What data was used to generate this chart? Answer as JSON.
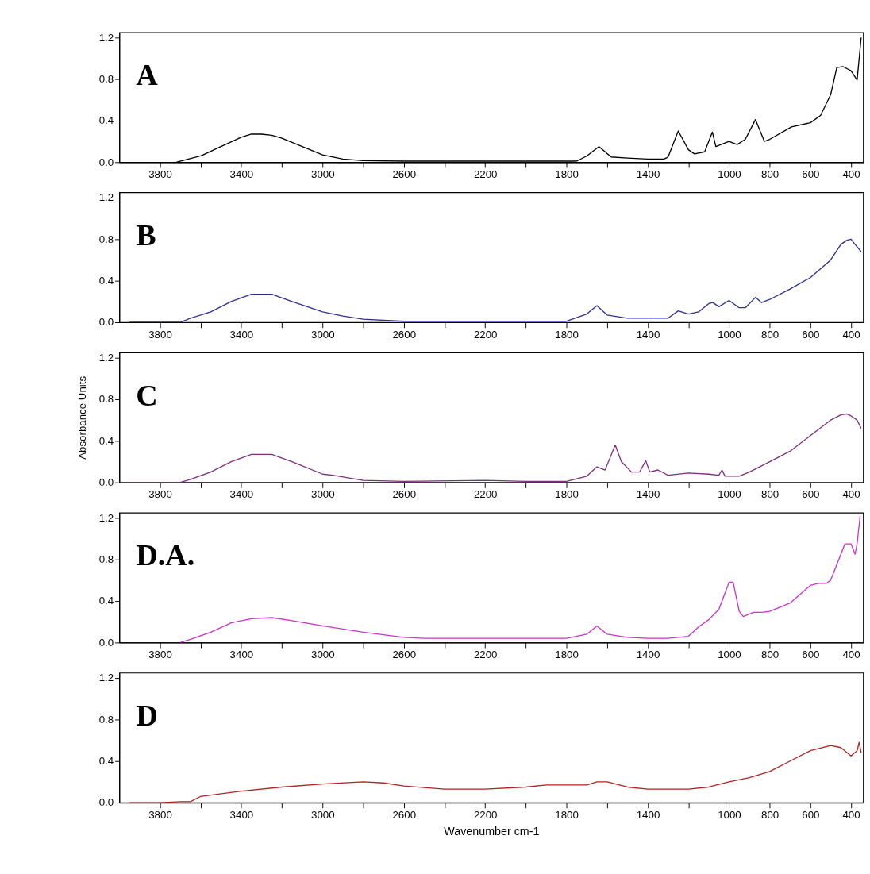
{
  "chart_data": [
    {
      "type": "line",
      "annotations": [
        "A"
      ],
      "xlim": [
        4000,
        340
      ],
      "ylim": [
        0,
        1.25
      ],
      "grid": false,
      "xticks": [
        3800,
        {
          "value": 3600,
          "label": null
        },
        3400,
        {
          "value": 3200,
          "label": null
        },
        3000,
        {
          "value": 2800,
          "label": null
        },
        2600,
        {
          "value": 2400,
          "label": null
        },
        2200,
        {
          "value": 2000,
          "label": null
        },
        1800,
        {
          "value": 1600,
          "label": null
        },
        1400,
        {
          "value": 1200,
          "label": null
        },
        1000,
        800,
        600,
        400
      ],
      "yticks": [
        {
          "value": 0,
          "label": "0.0"
        },
        {
          "value": 0.4,
          "label": "0.4"
        },
        {
          "value": 0.8,
          "label": "0.8"
        },
        {
          "value": 1.2,
          "label": "1.2"
        }
      ],
      "series": [
        {
          "color": "#000000",
          "x": [
            3720,
            3600,
            3500,
            3400,
            3350,
            3300,
            3250,
            3200,
            3100,
            3000,
            2900,
            2800,
            2600,
            2000,
            1750,
            1700,
            1640,
            1580,
            1500,
            1400,
            1320,
            1300,
            1250,
            1200,
            1170,
            1120,
            1082,
            1065,
            1000,
            960,
            920,
            870,
            826,
            800,
            693,
            600,
            550,
            500,
            470,
            440,
            420,
            400,
            370,
            350
          ],
          "values": [
            0.0,
            0.06,
            0.15,
            0.24,
            0.27,
            0.27,
            0.26,
            0.23,
            0.15,
            0.07,
            0.03,
            0.015,
            0.01,
            0.01,
            0.01,
            0.06,
            0.15,
            0.05,
            0.04,
            0.03,
            0.03,
            0.05,
            0.3,
            0.12,
            0.08,
            0.1,
            0.29,
            0.15,
            0.2,
            0.17,
            0.22,
            0.41,
            0.2,
            0.22,
            0.34,
            0.38,
            0.45,
            0.65,
            0.91,
            0.92,
            0.9,
            0.88,
            0.79,
            1.2
          ]
        }
      ]
    },
    {
      "type": "line",
      "annotations": [
        "B"
      ],
      "xlim": [
        4000,
        340
      ],
      "ylim": [
        0,
        1.25
      ],
      "grid": false,
      "xticks": [
        3800,
        {
          "value": 3600,
          "label": null
        },
        3400,
        {
          "value": 3200,
          "label": null
        },
        3000,
        {
          "value": 2800,
          "label": null
        },
        2600,
        {
          "value": 2400,
          "label": null
        },
        2200,
        {
          "value": 2000,
          "label": null
        },
        1800,
        {
          "value": 1600,
          "label": null
        },
        1400,
        {
          "value": 1200,
          "label": null
        },
        1000,
        800,
        600,
        400
      ],
      "yticks": [
        {
          "value": 0,
          "label": "0.0"
        },
        {
          "value": 0.4,
          "label": "0.4"
        },
        {
          "value": 0.8,
          "label": "0.8"
        },
        {
          "value": 1.2,
          "label": "1.2"
        }
      ],
      "series": [
        {
          "color": "#2e2e96",
          "x": [
            3950,
            3800,
            3700,
            3650,
            3550,
            3450,
            3350,
            3250,
            3150,
            3000,
            2900,
            2800,
            2600,
            1800,
            1700,
            1650,
            1600,
            1500,
            1300,
            1250,
            1200,
            1150,
            1100,
            1080,
            1050,
            1000,
            950,
            920,
            870,
            840,
            800,
            700,
            600,
            500,
            450,
            420,
            400,
            380,
            350
          ],
          "values": [
            0.0,
            0.0,
            0.0,
            0.04,
            0.1,
            0.2,
            0.27,
            0.27,
            0.2,
            0.1,
            0.06,
            0.03,
            0.01,
            0.01,
            0.08,
            0.16,
            0.07,
            0.04,
            0.04,
            0.11,
            0.08,
            0.1,
            0.18,
            0.19,
            0.15,
            0.21,
            0.14,
            0.14,
            0.24,
            0.19,
            0.22,
            0.32,
            0.43,
            0.6,
            0.75,
            0.79,
            0.8,
            0.75,
            0.68
          ]
        }
      ]
    },
    {
      "type": "line",
      "annotations": [
        "C"
      ],
      "ylabel": "Absorbance Units",
      "xlim": [
        4000,
        340
      ],
      "ylim": [
        0,
        1.25
      ],
      "grid": false,
      "xticks": [
        3800,
        {
          "value": 3600,
          "label": null
        },
        3400,
        {
          "value": 3200,
          "label": null
        },
        3000,
        {
          "value": 2800,
          "label": null
        },
        2600,
        {
          "value": 2400,
          "label": null
        },
        2200,
        {
          "value": 2000,
          "label": null
        },
        1800,
        {
          "value": 1600,
          "label": null
        },
        1400,
        {
          "value": 1200,
          "label": null
        },
        1000,
        800,
        600,
        400
      ],
      "yticks": [
        {
          "value": 0,
          "label": "0.0"
        },
        {
          "value": 0.4,
          "label": "0.4"
        },
        {
          "value": 0.8,
          "label": "0.8"
        },
        {
          "value": 1.2,
          "label": "1.2"
        }
      ],
      "series": [
        {
          "color": "#7e2f7e",
          "x": [
            3990,
            3700,
            3650,
            3550,
            3450,
            3350,
            3250,
            3150,
            3000,
            2950,
            2800,
            2600,
            2200,
            2000,
            1800,
            1700,
            1650,
            1610,
            1560,
            1530,
            1480,
            1440,
            1410,
            1390,
            1350,
            1300,
            1200,
            1100,
            1050,
            1035,
            1020,
            950,
            900,
            850,
            800,
            700,
            600,
            500,
            450,
            420,
            400,
            370,
            350
          ],
          "values": [
            0.0,
            0.0,
            0.03,
            0.1,
            0.2,
            0.27,
            0.27,
            0.2,
            0.08,
            0.07,
            0.02,
            0.01,
            0.02,
            0.01,
            0.01,
            0.06,
            0.15,
            0.12,
            0.36,
            0.2,
            0.1,
            0.1,
            0.21,
            0.1,
            0.12,
            0.07,
            0.09,
            0.08,
            0.07,
            0.12,
            0.06,
            0.06,
            0.1,
            0.15,
            0.2,
            0.3,
            0.45,
            0.6,
            0.65,
            0.66,
            0.64,
            0.6,
            0.52
          ]
        }
      ]
    },
    {
      "type": "line",
      "annotations": [
        "D.A."
      ],
      "xlim": [
        4000,
        340
      ],
      "ylim": [
        0,
        1.25
      ],
      "grid": false,
      "xticks": [
        3800,
        {
          "value": 3600,
          "label": null
        },
        3400,
        {
          "value": 3200,
          "label": null
        },
        3000,
        {
          "value": 2800,
          "label": null
        },
        2600,
        {
          "value": 2400,
          "label": null
        },
        2200,
        {
          "value": 2000,
          "label": null
        },
        1800,
        {
          "value": 1600,
          "label": null
        },
        1400,
        {
          "value": 1200,
          "label": null
        },
        1000,
        800,
        600,
        400
      ],
      "yticks": [
        {
          "value": 0,
          "label": "0.0"
        },
        {
          "value": 0.4,
          "label": "0.4"
        },
        {
          "value": 0.8,
          "label": "0.8"
        },
        {
          "value": 1.2,
          "label": "1.2"
        }
      ],
      "series": [
        {
          "color": "#cc33cc",
          "x": [
            3700,
            3650,
            3550,
            3450,
            3350,
            3250,
            3150,
            3000,
            2800,
            2600,
            2500,
            1800,
            1700,
            1650,
            1600,
            1500,
            1400,
            1300,
            1200,
            1150,
            1100,
            1050,
            1000,
            980,
            950,
            930,
            880,
            840,
            800,
            700,
            600,
            560,
            520,
            500,
            460,
            430,
            400,
            380,
            370,
            355
          ],
          "values": [
            0.0,
            0.03,
            0.1,
            0.19,
            0.23,
            0.24,
            0.21,
            0.16,
            0.1,
            0.05,
            0.04,
            0.04,
            0.08,
            0.16,
            0.08,
            0.05,
            0.04,
            0.04,
            0.06,
            0.15,
            0.22,
            0.32,
            0.58,
            0.58,
            0.3,
            0.25,
            0.29,
            0.29,
            0.3,
            0.38,
            0.55,
            0.57,
            0.57,
            0.6,
            0.8,
            0.95,
            0.95,
            0.85,
            0.95,
            1.22
          ]
        }
      ]
    },
    {
      "type": "line",
      "annotations": [
        "D"
      ],
      "xlabel": "Wavenumber cm-1",
      "xlim": [
        4000,
        340
      ],
      "ylim": [
        0,
        1.25
      ],
      "grid": false,
      "xticks": [
        3800,
        {
          "value": 3600,
          "label": null
        },
        3400,
        {
          "value": 3200,
          "label": null
        },
        3000,
        {
          "value": 2800,
          "label": null
        },
        2600,
        {
          "value": 2400,
          "label": null
        },
        2200,
        {
          "value": 2000,
          "label": null
        },
        1800,
        {
          "value": 1600,
          "label": null
        },
        1400,
        {
          "value": 1200,
          "label": null
        },
        1000,
        800,
        600,
        400
      ],
      "yticks": [
        {
          "value": 0,
          "label": "0.0"
        },
        {
          "value": 0.4,
          "label": "0.4"
        },
        {
          "value": 0.8,
          "label": "0.8"
        },
        {
          "value": 1.2,
          "label": "1.2"
        }
      ],
      "series": [
        {
          "color": "#b22222",
          "x": [
            3950,
            3800,
            3700,
            3650,
            3600,
            3400,
            3200,
            3000,
            2800,
            2700,
            2600,
            2400,
            2200,
            2000,
            1900,
            1700,
            1650,
            1600,
            1500,
            1400,
            1200,
            1100,
            1000,
            900,
            800,
            700,
            600,
            500,
            450,
            400,
            370,
            360,
            350
          ],
          "values": [
            0.0,
            0.0,
            0.01,
            0.01,
            0.06,
            0.11,
            0.15,
            0.18,
            0.2,
            0.19,
            0.16,
            0.13,
            0.13,
            0.15,
            0.17,
            0.17,
            0.2,
            0.2,
            0.15,
            0.13,
            0.13,
            0.15,
            0.2,
            0.24,
            0.3,
            0.4,
            0.5,
            0.55,
            0.53,
            0.45,
            0.5,
            0.58,
            0.48
          ]
        }
      ]
    }
  ]
}
